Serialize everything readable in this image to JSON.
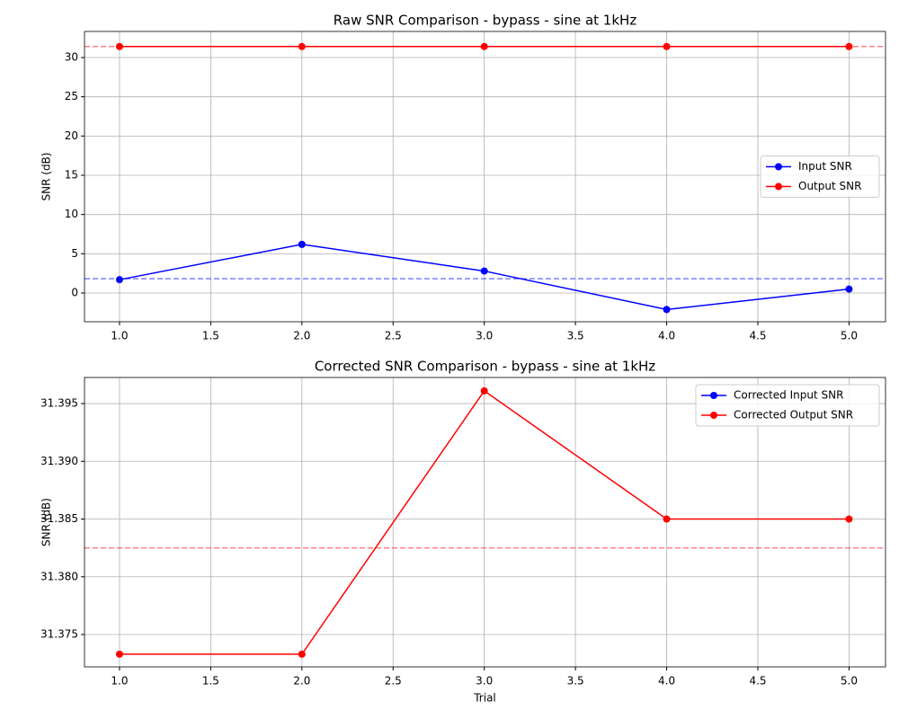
{
  "chart_data": [
    {
      "type": "line",
      "title": "Raw SNR Comparison - bypass - sine at 1kHz",
      "ylabel": "SNR (dB)",
      "x": [
        1,
        2,
        3,
        4,
        5
      ],
      "series": [
        {
          "name": "Input SNR",
          "color": "blue",
          "values": [
            1.7,
            6.2,
            2.8,
            -2.1,
            0.5
          ]
        },
        {
          "name": "Output SNR",
          "color": "red",
          "values": [
            31.4,
            31.4,
            31.4,
            31.4,
            31.4
          ]
        }
      ],
      "hlines": [
        {
          "value": 31.4,
          "color": "red"
        },
        {
          "value": 1.82,
          "color": "blue"
        }
      ],
      "xlim": [
        0.808,
        5.2
      ],
      "ylim": [
        -3.66,
        33.32
      ],
      "xticks": [
        {
          "value": 1,
          "label": "1.0"
        },
        {
          "value": 1.5,
          "label": "1.5"
        },
        {
          "value": 2,
          "label": "2.0"
        },
        {
          "value": 2.5,
          "label": "2.5"
        },
        {
          "value": 3,
          "label": "3.0"
        },
        {
          "value": 3.5,
          "label": "3.5"
        },
        {
          "value": 4,
          "label": "4.0"
        },
        {
          "value": 4.5,
          "label": "4.5"
        },
        {
          "value": 5,
          "label": "5.0"
        }
      ],
      "yticks": [
        0,
        5,
        10,
        15,
        20,
        25,
        30
      ],
      "grid": true,
      "legend": "center right"
    },
    {
      "type": "line",
      "title": "Corrected SNR Comparison - bypass - sine at 1kHz",
      "xlabel": "Trial",
      "ylabel": "SNR (dB)",
      "x": [
        1,
        2,
        3,
        4,
        5
      ],
      "series": [
        {
          "name": "Corrected Input SNR",
          "color": "blue",
          "values": [
            null,
            null,
            null,
            null,
            null
          ]
        },
        {
          "name": "Corrected Output SNR",
          "color": "red",
          "values": [
            31.3733,
            31.3733,
            31.3961,
            31.385,
            31.385
          ]
        }
      ],
      "hlines": [
        {
          "value": 31.3825,
          "color": "red"
        }
      ],
      "xlim": [
        0.808,
        5.2
      ],
      "ylim": [
        31.3722,
        31.39726
      ],
      "xticks": [
        {
          "value": 1,
          "label": "1.0"
        },
        {
          "value": 1.5,
          "label": "1.5"
        },
        {
          "value": 2,
          "label": "2.0"
        },
        {
          "value": 2.5,
          "label": "2.5"
        },
        {
          "value": 3,
          "label": "3.0"
        },
        {
          "value": 3.5,
          "label": "3.5"
        },
        {
          "value": 4,
          "label": "4.0"
        },
        {
          "value": 4.5,
          "label": "4.5"
        },
        {
          "value": 5,
          "label": "5.0"
        }
      ],
      "yticks": [
        31.375,
        {
          "value": 31.38,
          "label": "31.380"
        },
        31.385,
        {
          "value": 31.39,
          "label": "31.390"
        },
        31.395
      ],
      "grid": true,
      "legend": "upper right"
    }
  ]
}
